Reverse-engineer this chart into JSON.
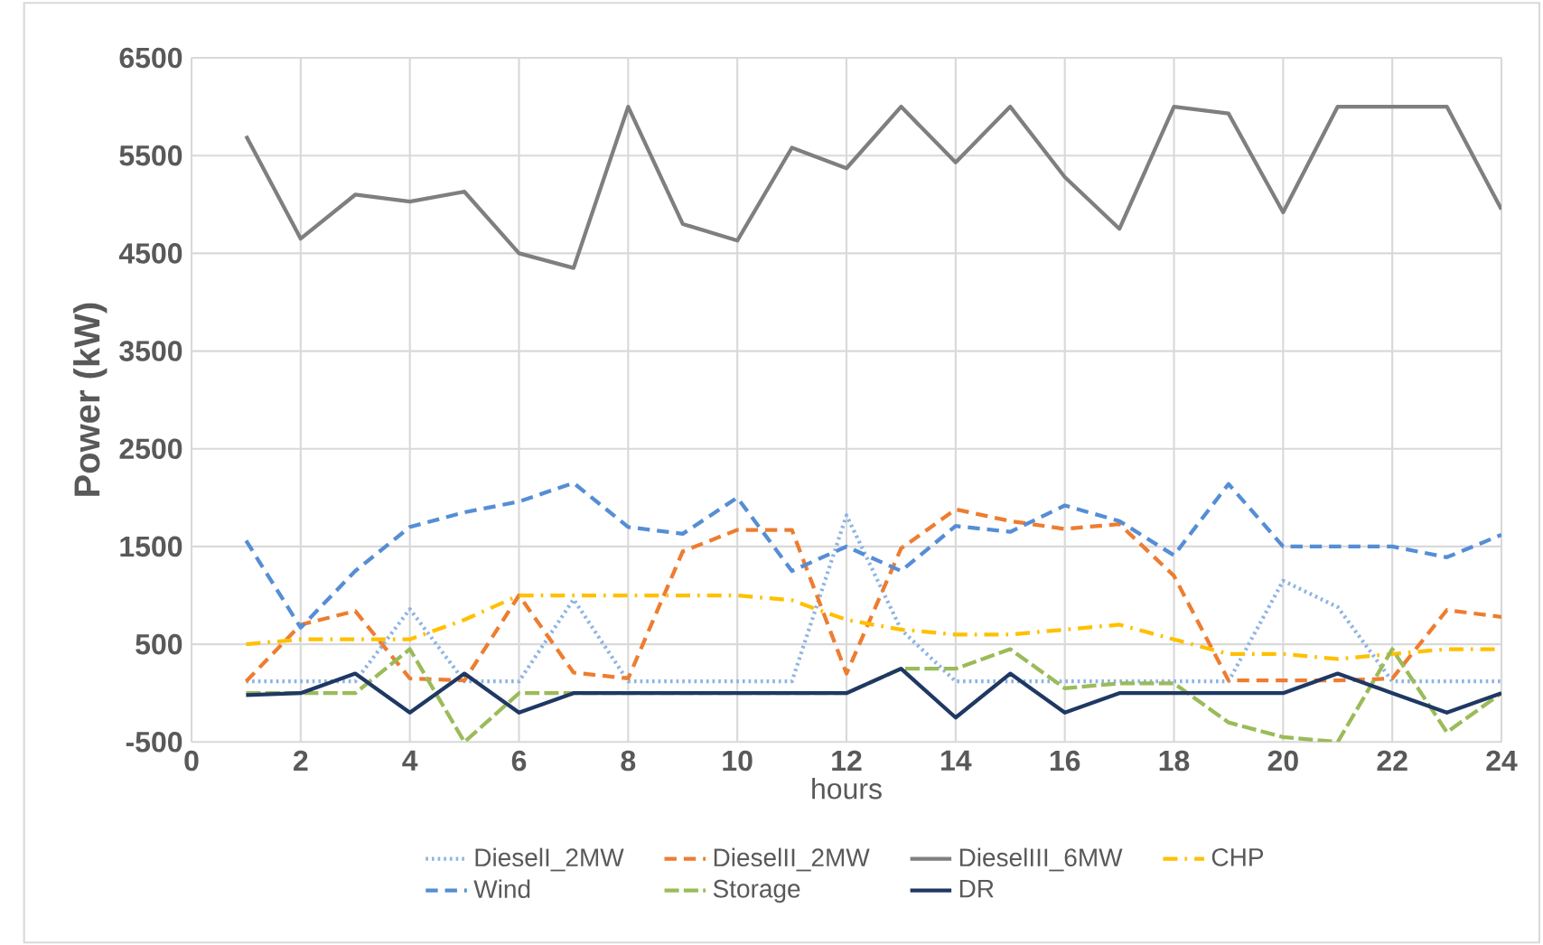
{
  "chart_data": {
    "type": "line",
    "xlabel": "hours",
    "ylabel": "Power (kW)",
    "x": [
      1,
      2,
      3,
      4,
      5,
      6,
      7,
      8,
      9,
      10,
      11,
      12,
      13,
      14,
      15,
      16,
      17,
      18,
      19,
      20,
      21,
      22,
      23,
      24
    ],
    "xlim": [
      0,
      24
    ],
    "xticks": [
      0,
      2,
      4,
      6,
      8,
      10,
      12,
      14,
      16,
      18,
      20,
      22,
      24
    ],
    "ylim": [
      -500,
      6500
    ],
    "yticks": [
      -500,
      500,
      1500,
      2500,
      3500,
      4500,
      5500,
      6500
    ],
    "grid": true,
    "legend": "bottom",
    "marker": "none",
    "series": [
      {
        "name": "DieselI_2MW",
        "color": "#8eb4e3",
        "line_style": "dotted",
        "values": [
          120,
          120,
          120,
          860,
          120,
          120,
          960,
          120,
          120,
          120,
          120,
          1820,
          650,
          120,
          120,
          120,
          120,
          120,
          120,
          1150,
          880,
          120,
          120,
          120
        ]
      },
      {
        "name": "DieselII_2MW",
        "color": "#ed7d31",
        "line_style": "dashed",
        "values": [
          120,
          700,
          840,
          150,
          130,
          1000,
          210,
          150,
          1450,
          1670,
          1670,
          200,
          1480,
          1880,
          1760,
          1680,
          1730,
          1200,
          130,
          130,
          130,
          150,
          850,
          780
        ]
      },
      {
        "name": "DieselIII_6MW",
        "color": "#7f7f7f",
        "line_style": "solid",
        "values": [
          5700,
          4650,
          5100,
          5030,
          5130,
          4500,
          4350,
          6000,
          4800,
          4630,
          5580,
          5370,
          6000,
          5430,
          6000,
          5280,
          4750,
          6000,
          5930,
          4920,
          6000,
          6000,
          6000,
          4950
        ]
      },
      {
        "name": "CHP",
        "color": "#ffc000",
        "line_style": "dashdot",
        "values": [
          500,
          550,
          550,
          550,
          750,
          1000,
          1000,
          1000,
          1000,
          1000,
          950,
          750,
          650,
          600,
          600,
          650,
          700,
          550,
          400,
          400,
          350,
          400,
          450,
          450
        ]
      },
      {
        "name": "Wind",
        "color": "#558ed5",
        "line_style": "dashed",
        "values": [
          1560,
          670,
          1250,
          1700,
          1850,
          1960,
          2150,
          1700,
          1630,
          2000,
          1250,
          1500,
          1250,
          1710,
          1650,
          1920,
          1760,
          1410,
          2140,
          1500,
          1500,
          1500,
          1390,
          1620
        ]
      },
      {
        "name": "Storage",
        "color": "#9bbb59",
        "line_style": "longdashed",
        "values": [
          0,
          0,
          0,
          450,
          -500,
          0,
          0,
          0,
          0,
          0,
          0,
          0,
          250,
          250,
          450,
          50,
          100,
          100,
          -300,
          -450,
          -500,
          450,
          -400,
          0
        ]
      },
      {
        "name": "DR",
        "color": "#1f3864",
        "line_style": "solid",
        "values": [
          -20,
          0,
          200,
          -200,
          200,
          -200,
          0,
          0,
          0,
          0,
          0,
          0,
          250,
          -250,
          200,
          -200,
          0,
          0,
          0,
          0,
          200,
          0,
          -200,
          0
        ]
      }
    ]
  }
}
